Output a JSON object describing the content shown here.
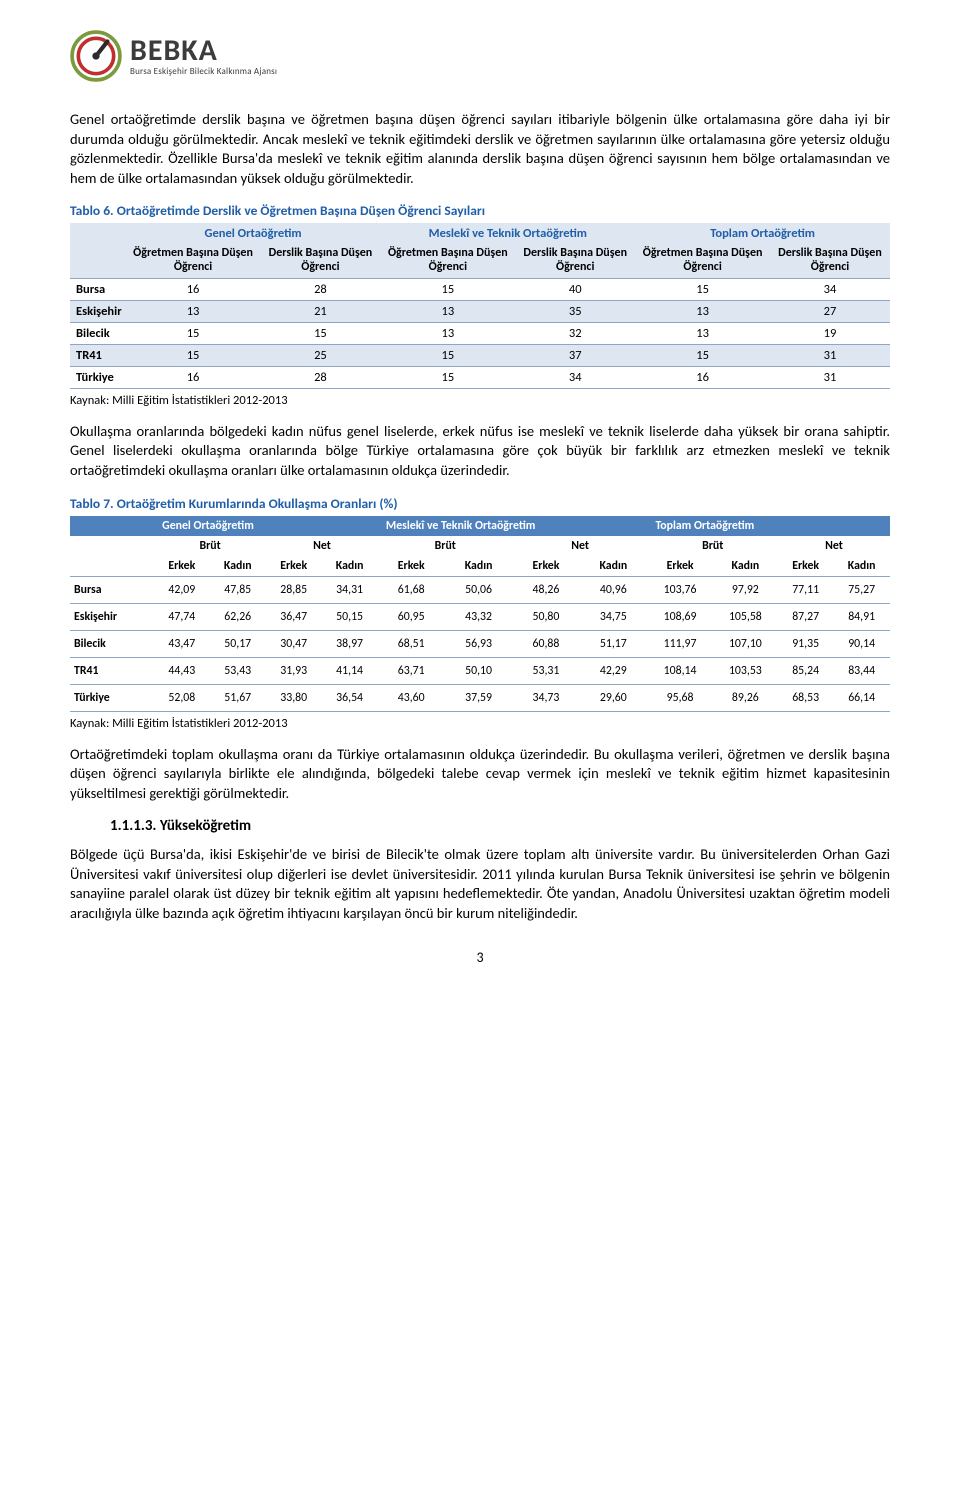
{
  "logo": {
    "title": "BEBKA",
    "subtitle": "Bursa Eskişehir Bilecik Kalkınma Ajansı",
    "ring_colors": {
      "outer": "#7a9a3e",
      "inner": "#c02f2f",
      "needle": "#2b2b2b"
    }
  },
  "para1": "Genel ortaöğretimde derslik başına ve öğretmen başına düşen öğrenci sayıları itibariyle bölgenin ülke ortalamasına göre daha iyi bir durumda olduğu görülmektedir. Ancak meslekî ve teknik eğitimdeki derslik ve öğretmen sayılarının ülke ortalamasına göre yetersiz olduğu gözlenmektedir. Özellikle Bursa'da meslekî ve teknik eğitim alanında derslik başına düşen öğrenci sayısının hem bölge ortalamasından ve hem de ülke ortalamasından yüksek olduğu görülmektedir.",
  "table6": {
    "title": "Tablo 6. Ortaöğretimde Derslik ve Öğretmen Başına Düşen Öğrenci Sayıları",
    "groups": [
      "Genel Ortaöğretim",
      "Meslekî ve Teknik Ortaöğretim",
      "Toplam Ortaöğretim"
    ],
    "sub_headers": [
      "Öğretmen Başına Düşen Öğrenci",
      "Derslik Başına Düşen Öğrenci",
      "Öğretmen Başına Düşen Öğrenci",
      "Derslik Başına Düşen Öğrenci",
      "Öğretmen Başına Düşen Öğrenci",
      "Derslik Başına Düşen Öğrenci"
    ],
    "rows": [
      {
        "label": "Bursa",
        "vals": [
          16,
          28,
          15,
          40,
          15,
          34
        ]
      },
      {
        "label": "Eskişehir",
        "vals": [
          13,
          21,
          13,
          35,
          13,
          27
        ]
      },
      {
        "label": "Bilecik",
        "vals": [
          15,
          15,
          13,
          32,
          13,
          19
        ]
      },
      {
        "label": "TR41",
        "vals": [
          15,
          25,
          15,
          37,
          15,
          31
        ]
      },
      {
        "label": "Türkiye",
        "vals": [
          16,
          28,
          15,
          34,
          16,
          31
        ]
      }
    ],
    "source": "Kaynak: Milli Eğitim İstatistikleri 2012-2013"
  },
  "para2": "Okullaşma oranlarında bölgedeki kadın nüfus genel liselerde, erkek nüfus ise meslekî ve teknik liselerde daha yüksek bir orana sahiptir. Genel liselerdeki okullaşma oranlarında bölge Türkiye ortalamasına göre çok büyük bir farklılık arz etmezken meslekî ve teknik ortaöğretimdeki okullaşma oranları ülke ortalamasının oldukça üzerindedir.",
  "table7": {
    "title": "Tablo 7. Ortaöğretim Kurumlarında Okullaşma Oranları (%)",
    "groups": [
      "Genel Ortaöğretim",
      "Meslekî ve Teknik Ortaöğretim",
      "Toplam Ortaöğretim"
    ],
    "mid_headers": [
      "Brüt",
      "Net",
      "Brüt",
      "Net",
      "Brüt",
      "Net"
    ],
    "ek_headers": [
      "Erkek",
      "Kadın",
      "Erkek",
      "Kadın",
      "Erkek",
      "Kadın",
      "Erkek",
      "Kadın",
      "Erkek",
      "Kadın",
      "Erkek",
      "Kadın"
    ],
    "rows": [
      {
        "label": "Bursa",
        "vals": [
          "42,09",
          "47,85",
          "28,85",
          "34,31",
          "61,68",
          "50,06",
          "48,26",
          "40,96",
          "103,76",
          "97,92",
          "77,11",
          "75,27"
        ]
      },
      {
        "label": "Eskişehir",
        "vals": [
          "47,74",
          "62,26",
          "36,47",
          "50,15",
          "60,95",
          "43,32",
          "50,80",
          "34,75",
          "108,69",
          "105,58",
          "87,27",
          "84,91"
        ]
      },
      {
        "label": "Bilecik",
        "vals": [
          "43,47",
          "50,17",
          "30,47",
          "38,97",
          "68,51",
          "56,93",
          "60,88",
          "51,17",
          "111,97",
          "107,10",
          "91,35",
          "90,14"
        ]
      },
      {
        "label": "TR41",
        "vals": [
          "44,43",
          "53,43",
          "31,93",
          "41,14",
          "63,71",
          "50,10",
          "53,31",
          "42,29",
          "108,14",
          "103,53",
          "85,24",
          "83,44"
        ]
      },
      {
        "label": "Türkiye",
        "vals": [
          "52,08",
          "51,67",
          "33,80",
          "36,54",
          "43,60",
          "37,59",
          "34,73",
          "29,60",
          "95,68",
          "89,26",
          "68,53",
          "66,14"
        ]
      }
    ],
    "source": "Kaynak: Milli Eğitim İstatistikleri 2012-2013"
  },
  "para3": "Ortaöğretimdeki toplam okullaşma oranı da Türkiye ortalamasının oldukça üzerindedir. Bu okullaşma verileri, öğretmen ve derslik başına düşen öğrenci sayılarıyla birlikte ele alındığında, bölgedeki talebe cevap vermek için meslekî ve teknik eğitim hizmet kapasitesinin yükseltilmesi gerektiği görülmektedir.",
  "section": "1.1.1.3.  Yükseköğretim",
  "para4": "Bölgede üçü Bursa'da, ikisi Eskişehir'de ve birisi de Bilecik'te olmak üzere toplam altı üniversite vardır. Bu üniversitelerden Orhan Gazi Üniversitesi vakıf üniversitesi olup diğerleri ise devlet üniversitesidir. 2011 yılında kurulan Bursa Teknik üniversitesi ise şehrin ve bölgenin sanayiine paralel olarak üst düzey bir teknik eğitim alt yapısını hedeflemektedir. Öte yandan, Anadolu Üniversitesi uzaktan öğretim modeli aracılığıyla ülke bazında açık öğretim ihtiyacını karşılayan öncü bir kurum niteliğindedir.",
  "page_number": "3",
  "colors": {
    "header_bg_light": "#dde6f1",
    "header_bg_dark": "#4f81bd",
    "title_blue": "#1f5ea8",
    "border": "#8ea6c4"
  }
}
